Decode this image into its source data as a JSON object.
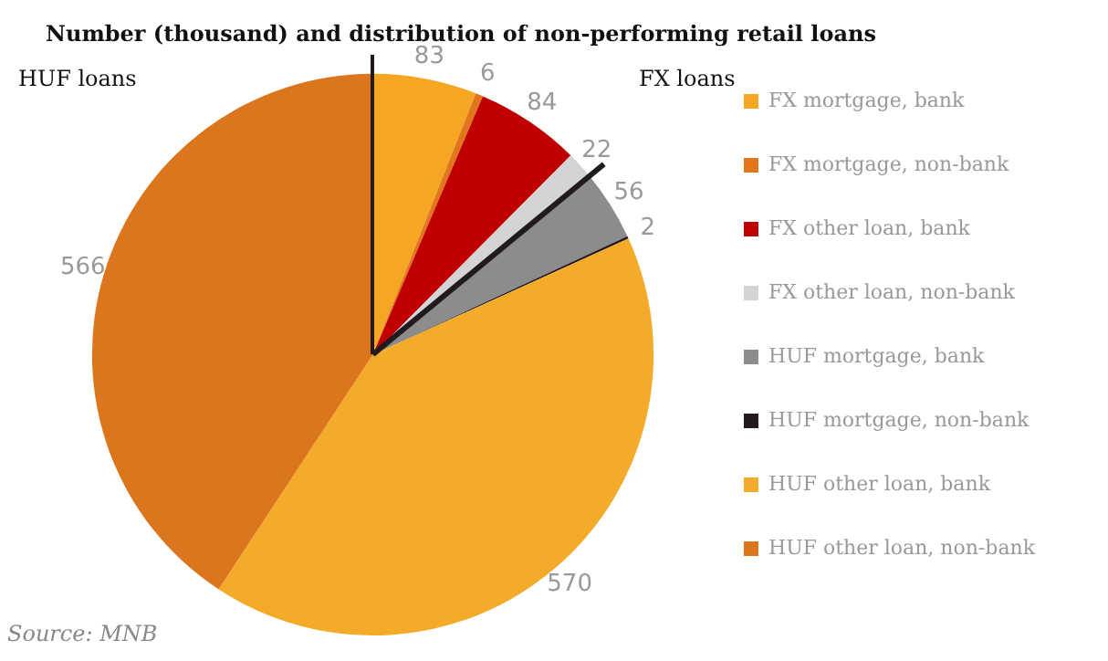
{
  "chart_data": {
    "type": "pie",
    "title": "Number (thousand) and distribution of non-performing retail loans",
    "categories": [
      "FX mortgage, bank",
      "FX mortgage, non-bank",
      "FX other loan, bank",
      "FX other loan, non-bank",
      "HUF mortgage, bank",
      "HUF mortgage, non-bank",
      "HUF other loan, bank",
      "HUF other loan, non-bank"
    ],
    "values": [
      83,
      6,
      84,
      22,
      56,
      2,
      570,
      566
    ],
    "colors": [
      "#f5a623",
      "#e2761c",
      "#c00000",
      "#d4d4d4",
      "#8c8c8c",
      "#231a1e",
      "#f4ab2a",
      "#dc761e"
    ],
    "data_labels": true,
    "legend": "right",
    "annotations": [
      "HUF loans",
      "FX loans",
      "Source: MNB"
    ]
  }
}
